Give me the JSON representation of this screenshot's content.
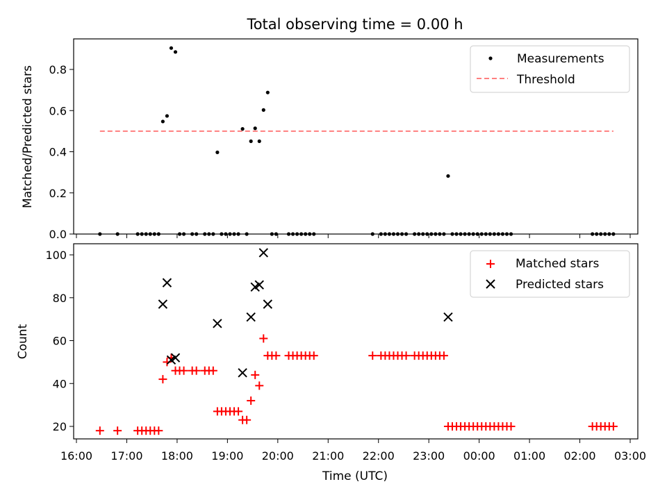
{
  "chart_data": [
    {
      "type": "scatter",
      "title": "Total observing time = 0.00 h",
      "xlabel": "",
      "ylabel": "Matched/Predicted stars",
      "xlim": [
        "16:00",
        "03:00"
      ],
      "ylim": [
        0,
        0.95
      ],
      "yticks": [
        "0.0",
        "0.2",
        "0.4",
        "0.6",
        "0.8"
      ],
      "grid": false,
      "legend_position": "upper-right",
      "series": [
        {
          "name": "Measurements",
          "style": "dot",
          "color": "#000000",
          "points": [
            [
              "16:28",
              0.0
            ],
            [
              "16:49",
              0.0
            ],
            [
              "17:13",
              0.0
            ],
            [
              "17:18",
              0.0
            ],
            [
              "17:23",
              0.0
            ],
            [
              "17:28",
              0.0
            ],
            [
              "17:33",
              0.0
            ],
            [
              "17:38",
              0.0
            ],
            [
              "17:43",
              0.547
            ],
            [
              "17:48",
              0.574
            ],
            [
              "17:53",
              0.904
            ],
            [
              "17:58",
              0.885
            ],
            [
              "18:03",
              0.0
            ],
            [
              "18:08",
              0.0
            ],
            [
              "18:18",
              0.0
            ],
            [
              "18:23",
              0.0
            ],
            [
              "18:33",
              0.0
            ],
            [
              "18:38",
              0.0
            ],
            [
              "18:43",
              0.0
            ],
            [
              "18:48",
              0.397
            ],
            [
              "18:53",
              0.0
            ],
            [
              "18:58",
              0.0
            ],
            [
              "19:03",
              0.0
            ],
            [
              "19:08",
              0.0
            ],
            [
              "19:13",
              0.0
            ],
            [
              "19:18",
              0.511
            ],
            [
              "19:23",
              0.0
            ],
            [
              "19:28",
              0.451
            ],
            [
              "19:33",
              0.514
            ],
            [
              "19:38",
              0.451
            ],
            [
              "19:43",
              0.603
            ],
            [
              "19:48",
              0.688
            ],
            [
              "19:53",
              0.0
            ],
            [
              "19:58",
              0.0
            ],
            [
              "20:13",
              0.0
            ],
            [
              "20:18",
              0.0
            ],
            [
              "20:23",
              0.0
            ],
            [
              "20:28",
              0.0
            ],
            [
              "20:33",
              0.0
            ],
            [
              "20:38",
              0.0
            ],
            [
              "20:43",
              0.0
            ],
            [
              "21:53",
              0.0
            ],
            [
              "22:03",
              0.0
            ],
            [
              "22:08",
              0.0
            ],
            [
              "22:13",
              0.0
            ],
            [
              "22:18",
              0.0
            ],
            [
              "22:23",
              0.0
            ],
            [
              "22:28",
              0.0
            ],
            [
              "22:33",
              0.0
            ],
            [
              "22:43",
              0.0
            ],
            [
              "22:48",
              0.0
            ],
            [
              "22:53",
              0.0
            ],
            [
              "22:58",
              0.0
            ],
            [
              "23:03",
              0.0
            ],
            [
              "23:08",
              0.0
            ],
            [
              "23:13",
              0.0
            ],
            [
              "23:18",
              0.0
            ],
            [
              "23:23",
              0.282
            ],
            [
              "23:28",
              0.0
            ],
            [
              "23:33",
              0.0
            ],
            [
              "23:38",
              0.0
            ],
            [
              "23:43",
              0.0
            ],
            [
              "23:48",
              0.0
            ],
            [
              "23:53",
              0.0
            ],
            [
              "23:58",
              0.0
            ],
            [
              "00:03",
              0.0
            ],
            [
              "00:08",
              0.0
            ],
            [
              "00:13",
              0.0
            ],
            [
              "00:18",
              0.0
            ],
            [
              "00:23",
              0.0
            ],
            [
              "00:28",
              0.0
            ],
            [
              "00:33",
              0.0
            ],
            [
              "00:38",
              0.0
            ],
            [
              "02:15",
              0.0
            ],
            [
              "02:20",
              0.0
            ],
            [
              "02:25",
              0.0
            ],
            [
              "02:30",
              0.0
            ],
            [
              "02:35",
              0.0
            ],
            [
              "02:40",
              0.0
            ]
          ]
        },
        {
          "name": "Threshold",
          "style": "dashed-line",
          "color": "#ff7f7f",
          "points": [
            [
              "16:28",
              0.5
            ],
            [
              "02:40",
              0.5
            ]
          ]
        }
      ]
    },
    {
      "type": "scatter",
      "title": "",
      "xlabel": "Time (UTC)",
      "ylabel": "Count",
      "xlim": [
        "16:00",
        "03:00"
      ],
      "ylim": [
        14,
        105
      ],
      "xticks": [
        "16:00",
        "17:00",
        "18:00",
        "19:00",
        "20:00",
        "21:00",
        "22:00",
        "23:00",
        "00:00",
        "01:00",
        "02:00",
        "03:00"
      ],
      "yticks": [
        "20",
        "40",
        "60",
        "80",
        "100"
      ],
      "grid": false,
      "legend_position": "upper-right",
      "series": [
        {
          "name": "Matched stars",
          "style": "plus",
          "color": "#ff0000",
          "points": [
            [
              "16:28",
              18
            ],
            [
              "16:49",
              18
            ],
            [
              "17:13",
              18
            ],
            [
              "17:18",
              18
            ],
            [
              "17:23",
              18
            ],
            [
              "17:28",
              18
            ],
            [
              "17:33",
              18
            ],
            [
              "17:38",
              18
            ],
            [
              "17:43",
              42
            ],
            [
              "17:48",
              50
            ],
            [
              "17:53",
              52
            ],
            [
              "17:58",
              46
            ],
            [
              "18:03",
              46
            ],
            [
              "18:08",
              46
            ],
            [
              "18:18",
              46
            ],
            [
              "18:23",
              46
            ],
            [
              "18:33",
              46
            ],
            [
              "18:38",
              46
            ],
            [
              "18:43",
              46
            ],
            [
              "18:48",
              27
            ],
            [
              "18:53",
              27
            ],
            [
              "18:58",
              27
            ],
            [
              "19:03",
              27
            ],
            [
              "19:08",
              27
            ],
            [
              "19:13",
              27
            ],
            [
              "19:18",
              23
            ],
            [
              "19:23",
              23
            ],
            [
              "19:28",
              32
            ],
            [
              "19:33",
              44
            ],
            [
              "19:38",
              39
            ],
            [
              "19:43",
              61
            ],
            [
              "19:48",
              53
            ],
            [
              "19:53",
              53
            ],
            [
              "19:58",
              53
            ],
            [
              "20:13",
              53
            ],
            [
              "20:18",
              53
            ],
            [
              "20:23",
              53
            ],
            [
              "20:28",
              53
            ],
            [
              "20:33",
              53
            ],
            [
              "20:38",
              53
            ],
            [
              "20:43",
              53
            ],
            [
              "21:53",
              53
            ],
            [
              "22:03",
              53
            ],
            [
              "22:08",
              53
            ],
            [
              "22:13",
              53
            ],
            [
              "22:18",
              53
            ],
            [
              "22:23",
              53
            ],
            [
              "22:28",
              53
            ],
            [
              "22:33",
              53
            ],
            [
              "22:43",
              53
            ],
            [
              "22:48",
              53
            ],
            [
              "22:53",
              53
            ],
            [
              "22:58",
              53
            ],
            [
              "23:03",
              53
            ],
            [
              "23:08",
              53
            ],
            [
              "23:13",
              53
            ],
            [
              "23:18",
              53
            ],
            [
              "23:23",
              20
            ],
            [
              "23:28",
              20
            ],
            [
              "23:33",
              20
            ],
            [
              "23:38",
              20
            ],
            [
              "23:43",
              20
            ],
            [
              "23:48",
              20
            ],
            [
              "23:53",
              20
            ],
            [
              "23:58",
              20
            ],
            [
              "00:03",
              20
            ],
            [
              "00:08",
              20
            ],
            [
              "00:13",
              20
            ],
            [
              "00:18",
              20
            ],
            [
              "00:23",
              20
            ],
            [
              "00:28",
              20
            ],
            [
              "00:33",
              20
            ],
            [
              "00:38",
              20
            ],
            [
              "02:15",
              20
            ],
            [
              "02:20",
              20
            ],
            [
              "02:25",
              20
            ],
            [
              "02:30",
              20
            ],
            [
              "02:35",
              20
            ],
            [
              "02:40",
              20
            ]
          ]
        },
        {
          "name": "Predicted stars",
          "style": "x",
          "color": "#000000",
          "points": [
            [
              "17:43",
              77
            ],
            [
              "17:48",
              87
            ],
            [
              "17:53",
              51
            ],
            [
              "17:58",
              52
            ],
            [
              "18:48",
              68
            ],
            [
              "19:18",
              45
            ],
            [
              "19:28",
              71
            ],
            [
              "19:33",
              85
            ],
            [
              "19:38",
              86
            ],
            [
              "19:43",
              101
            ],
            [
              "19:48",
              77
            ],
            [
              "23:23",
              71
            ]
          ]
        }
      ]
    }
  ]
}
